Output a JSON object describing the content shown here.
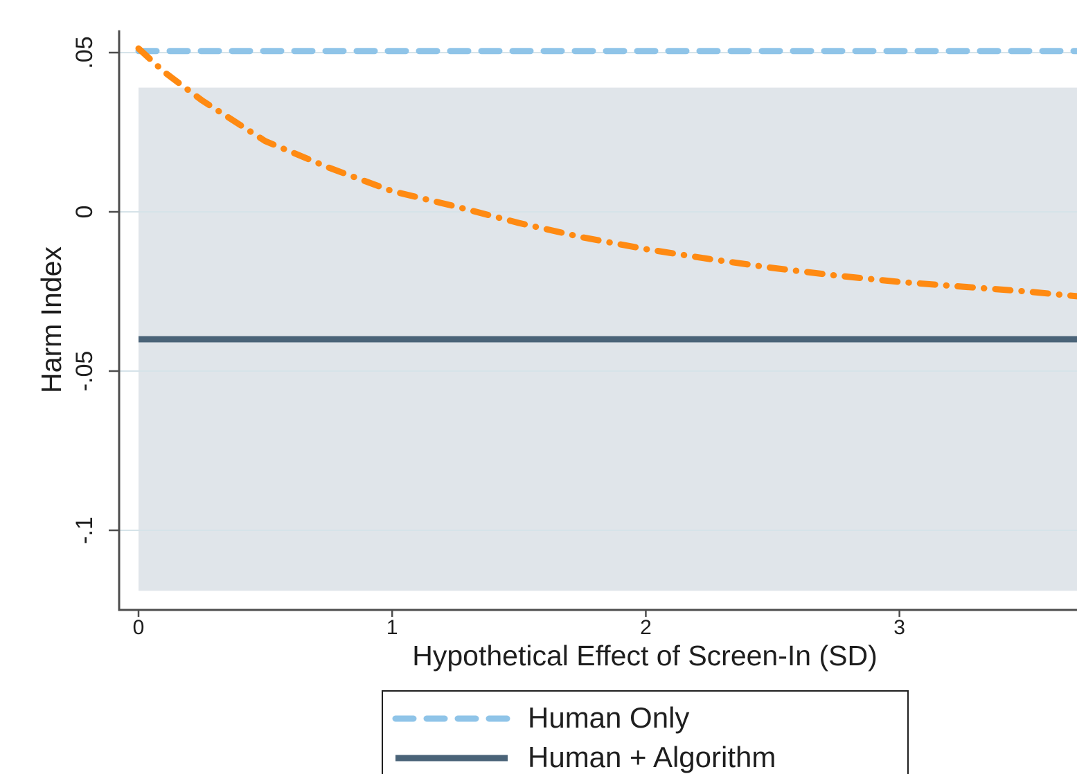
{
  "chart_data": {
    "type": "line",
    "xlabel": "Hypothetical Effect of Screen-In (SD)",
    "ylabel": "Harm Index",
    "xlim": [
      0,
      3.7
    ],
    "ylim": [
      -0.125,
      0.057
    ],
    "xticks": [
      0,
      1,
      2,
      3
    ],
    "xtick_labels": [
      "0",
      "1",
      "2",
      "3"
    ],
    "yticks": [
      0.05,
      0,
      -0.05,
      -0.1
    ],
    "ytick_labels": [
      ".05",
      "0",
      "-.05",
      "-.1"
    ],
    "grid": true,
    "legend_position": "bottom",
    "band": {
      "x": [
        0,
        3.7
      ],
      "lower": -0.119,
      "upper": 0.039,
      "color": "#e0e5ea"
    },
    "series": [
      {
        "name": "Human Only",
        "dash": "dashed",
        "color": "#8fc4e8",
        "x": [
          0,
          3.7
        ],
        "y": [
          0.0505,
          0.0505
        ]
      },
      {
        "name": "Human + Algorithm",
        "dash": "solid",
        "color": "#4a6378",
        "x": [
          0,
          3.7
        ],
        "y": [
          -0.04,
          -0.04
        ]
      },
      {
        "dash": "dash-dot",
        "color": "#ff8a12",
        "x": [
          0,
          0.1,
          0.25,
          0.5,
          0.75,
          1,
          1.25,
          1.5,
          1.75,
          2,
          2.25,
          2.5,
          2.75,
          3,
          3.25,
          3.5,
          3.7
        ],
        "y": [
          0.0513,
          0.044,
          0.035,
          0.0222,
          0.0139,
          0.0065,
          0.0017,
          -0.0035,
          -0.008,
          -0.0117,
          -0.0148,
          -0.0176,
          -0.02,
          -0.022,
          -0.0235,
          -0.025,
          -0.0265
        ]
      }
    ]
  }
}
